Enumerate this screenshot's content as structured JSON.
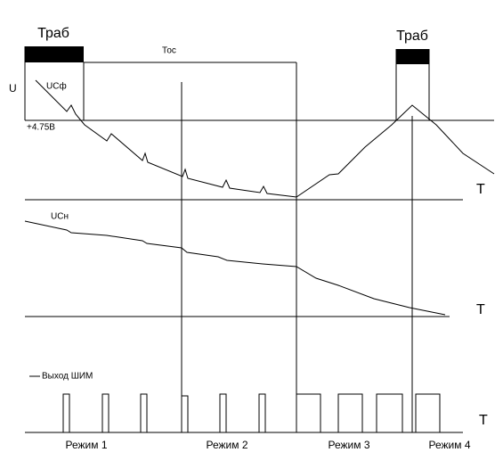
{
  "top": {
    "t_work_left": "Траб",
    "t_os": "Тос",
    "t_work_right": "Траб"
  },
  "axis_label": "U",
  "threshold": "+4.75В",
  "traces": [
    {
      "label": "UCф",
      "axis": "T"
    },
    {
      "label": "UCн",
      "axis": "T"
    },
    {
      "label": "Выход ШИМ",
      "axis": "T"
    }
  ],
  "modes": [
    "Режим 1",
    "Режим 2",
    "Режим 3",
    "Режим 4"
  ]
}
